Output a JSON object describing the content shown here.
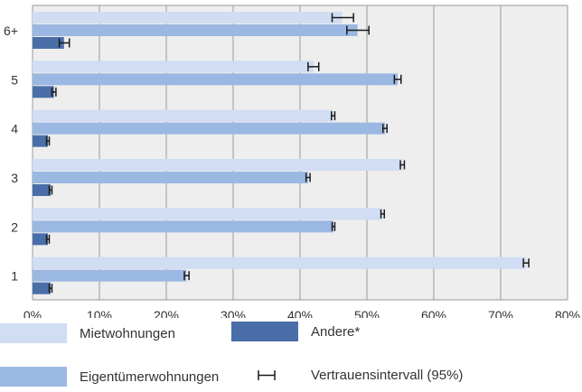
{
  "chart_data": {
    "type": "bar",
    "orientation": "horizontal",
    "categories": [
      "1",
      "2",
      "3",
      "4",
      "5",
      "6+"
    ],
    "series": [
      {
        "name": "Mietwohnungen",
        "color": "#d0ddf3",
        "values": [
          73.8,
          52.3,
          55.3,
          44.9,
          42.0,
          46.3
        ],
        "ci_low": [
          73.4,
          52.1,
          55.0,
          44.7,
          41.2,
          44.8
        ],
        "ci_high": [
          74.2,
          52.6,
          55.6,
          45.2,
          42.8,
          48.0
        ]
      },
      {
        "name": "Eigentümerwohnungen",
        "color": "#9bb8e2",
        "values": [
          23.0,
          45.0,
          41.2,
          52.7,
          54.6,
          48.6
        ],
        "ci_low": [
          22.7,
          44.8,
          40.9,
          52.4,
          54.1,
          47.0
        ],
        "ci_high": [
          23.4,
          45.2,
          41.5,
          53.0,
          55.1,
          50.3
        ]
      },
      {
        "name": "Andere*",
        "color": "#4a6fa8",
        "values": [
          2.7,
          2.3,
          2.7,
          2.3,
          3.2,
          4.7
        ],
        "ci_low": [
          2.5,
          2.1,
          2.5,
          2.1,
          2.9,
          4.0
        ],
        "ci_high": [
          2.9,
          2.5,
          2.9,
          2.5,
          3.5,
          5.5
        ]
      }
    ],
    "xlim": [
      0,
      80
    ],
    "x_ticks": [
      "0%",
      "10%",
      "20%",
      "30%",
      "40%",
      "50%",
      "60%",
      "70%",
      "80%"
    ],
    "grid": true,
    "legend_position": "bottom",
    "ci_label": "Vertrauensintervall (95%)"
  },
  "colors": {
    "plot_background": "#eeeeee",
    "grid": "#9a9a9a",
    "error_bar": "#1a1a1a"
  }
}
